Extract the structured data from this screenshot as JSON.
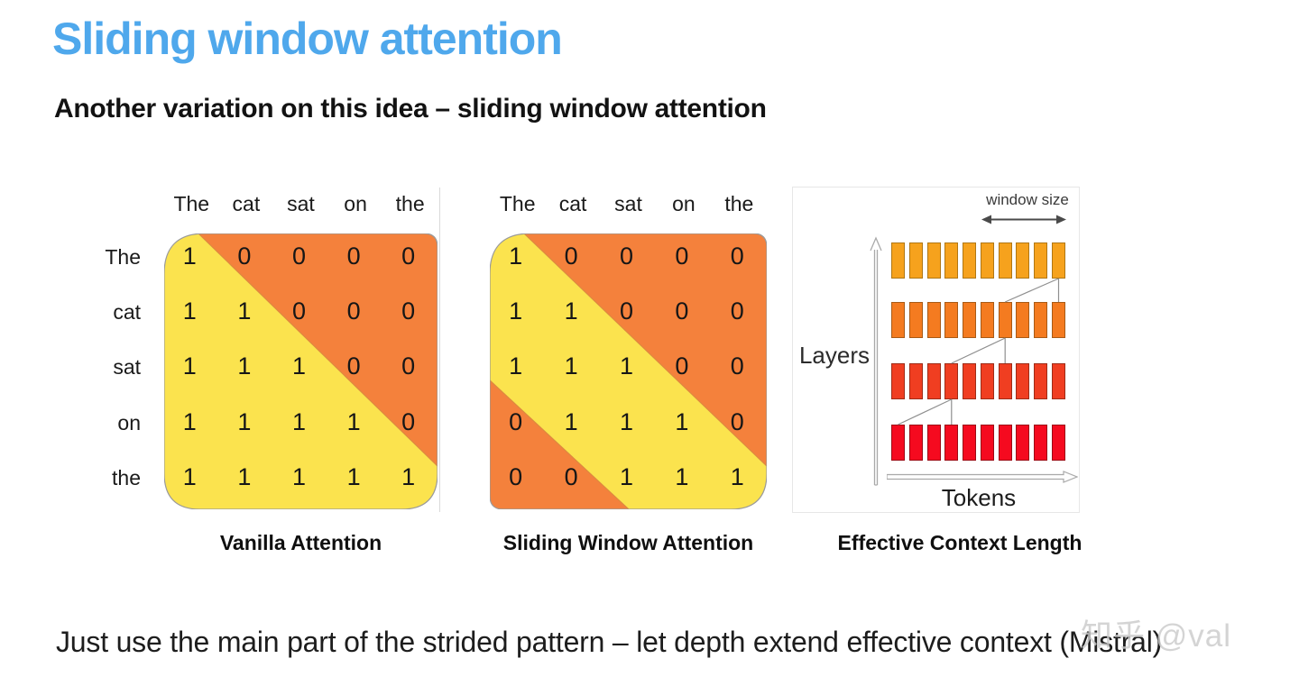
{
  "page": {
    "title": "Sliding window attention",
    "subtitle": "Another variation on this idea – sliding window attention",
    "footer_note": "Just use the main part of the strided pattern – let depth extend effective context (Mistral)",
    "watermark": "知乎 @val"
  },
  "colors": {
    "title_blue": "#4FA8EC",
    "mask_yellow": "#FBE34E",
    "mask_orange": "#F4813C",
    "mask_edge": "#DD8A3F",
    "matrix_border": "#9a9a9a"
  },
  "vanilla_matrix": {
    "caption": "Vanilla Attention",
    "col_headers": [
      "The",
      "cat",
      "sat",
      "on",
      "the"
    ],
    "row_headers": [
      "The",
      "cat",
      "sat",
      "on",
      "the"
    ],
    "values": [
      [
        1,
        0,
        0,
        0,
        0
      ],
      [
        1,
        1,
        0,
        0,
        0
      ],
      [
        1,
        1,
        1,
        0,
        0
      ],
      [
        1,
        1,
        1,
        1,
        0
      ],
      [
        1,
        1,
        1,
        1,
        1
      ]
    ]
  },
  "sliding_matrix": {
    "caption": "Sliding Window Attention",
    "col_headers": [
      "The",
      "cat",
      "sat",
      "on",
      "the"
    ],
    "values": [
      [
        1,
        0,
        0,
        0,
        0
      ],
      [
        1,
        1,
        0,
        0,
        0
      ],
      [
        1,
        1,
        1,
        0,
        0
      ],
      [
        0,
        1,
        1,
        1,
        0
      ],
      [
        0,
        0,
        1,
        1,
        1
      ]
    ]
  },
  "context_diagram": {
    "caption": "Effective Context Length",
    "window_size_label": "window size",
    "layers_label": "Layers",
    "tokens_label": "Tokens",
    "layer_rows": [
      {
        "label": "layer-4-window",
        "color": "#F6A21D",
        "border": "#b07714",
        "tokens": 10
      },
      {
        "label": "layer-3-window",
        "color": "#F47B20",
        "border": "#a85a16",
        "tokens": 10
      },
      {
        "label": "layer-2-window",
        "color": "#F03E21",
        "border": "#9e2c17",
        "tokens": 10
      },
      {
        "label": "layer-1-window",
        "color": "#F50A1F",
        "border": "#9c0a15",
        "tokens": 10
      }
    ]
  }
}
